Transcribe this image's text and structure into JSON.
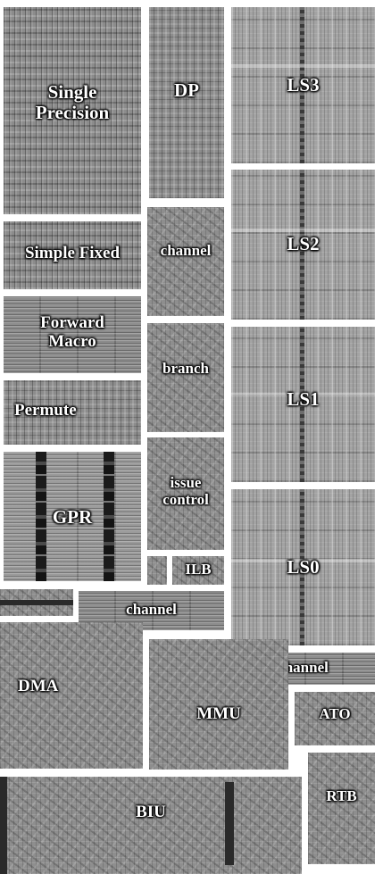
{
  "blocks": {
    "single_precision": "Single\nPrecision",
    "dp": "DP",
    "ls3": "LS3",
    "ls2": "LS2",
    "ls1": "LS1",
    "ls0": "LS0",
    "simple_fixed": "Simple Fixed",
    "channel_upper": "channel",
    "forward_macro": "Forward\nMacro",
    "branch": "branch",
    "permute": "Permute",
    "gpr": "GPR",
    "issue_control": "issue\ncontrol",
    "ilb": "ILB",
    "channel_middle": "channel",
    "channel_right": "channel",
    "dma": "DMA",
    "mmu": "MMU",
    "ato": "ATO",
    "rtb": "RTB",
    "biu": "BIU"
  }
}
